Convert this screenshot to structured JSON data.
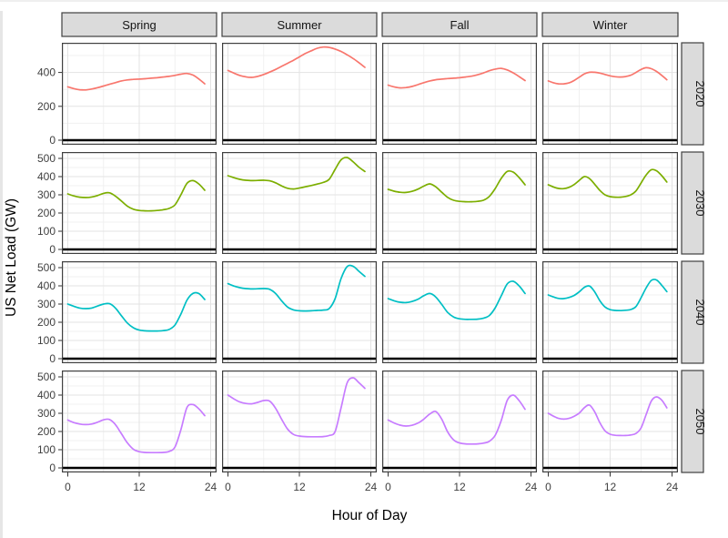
{
  "chart_data": {
    "type": "line",
    "title": "",
    "xlabel": "Hour of Day",
    "ylabel": "US Net Load (GW)",
    "facet_columns": [
      "Spring",
      "Summer",
      "Fall",
      "Winter"
    ],
    "facet_rows": [
      "2020",
      "2030",
      "2040",
      "2050"
    ],
    "x_hours": [
      0,
      1,
      2,
      3,
      4,
      5,
      6,
      7,
      8,
      9,
      10,
      11,
      12,
      13,
      14,
      15,
      16,
      17,
      18,
      19,
      20,
      21,
      22,
      23
    ],
    "x_ticks": [
      0,
      12,
      24
    ],
    "xlim": [
      0,
      24
    ],
    "grid": true,
    "legend": "none",
    "strip_background": "#dbdbdb",
    "strip_text_color": "#141414",
    "panel_border_color": "#3f3f3f",
    "grid_major_color": "#e3e3e3",
    "grid_minor_color": "#f0f0f0",
    "zero_line_color": "#000000",
    "tick_label_color": "#404040",
    "rows": [
      {
        "label": "2020",
        "color": "#F8766D",
        "y_ticks": [
          0,
          200,
          400
        ],
        "y_minor": [
          100,
          300,
          500
        ],
        "ylim": [
          0,
          575
        ],
        "series": {
          "Spring": [
            315,
            305,
            298,
            297,
            302,
            310,
            320,
            330,
            340,
            350,
            356,
            359,
            361,
            363,
            366,
            369,
            373,
            377,
            383,
            390,
            394,
            385,
            362,
            333
          ],
          "Summer": [
            412,
            396,
            382,
            374,
            371,
            377,
            388,
            402,
            418,
            436,
            454,
            472,
            492,
            512,
            528,
            543,
            550,
            548,
            538,
            524,
            505,
            483,
            458,
            430
          ],
          "Fall": [
            325,
            315,
            309,
            311,
            317,
            328,
            340,
            350,
            357,
            361,
            364,
            366,
            369,
            373,
            378,
            386,
            397,
            410,
            420,
            424,
            415,
            398,
            376,
            352
          ],
          "Winter": [
            350,
            339,
            333,
            333,
            338,
            352,
            372,
            392,
            401,
            401,
            396,
            388,
            380,
            375,
            373,
            376,
            384,
            400,
            418,
            428,
            422,
            406,
            383,
            357
          ]
        }
      },
      {
        "label": "2030",
        "color": "#7CAE00",
        "y_ticks": [
          0,
          100,
          200,
          300,
          400,
          500
        ],
        "y_minor": [
          50,
          150,
          250,
          350,
          450
        ],
        "ylim": [
          0,
          535
        ],
        "series": {
          "Spring": [
            305,
            294,
            287,
            285,
            288,
            296,
            308,
            311,
            293,
            266,
            238,
            221,
            214,
            212,
            212,
            214,
            218,
            225,
            245,
            300,
            362,
            378,
            360,
            325
          ],
          "Summer": [
            405,
            394,
            385,
            380,
            378,
            379,
            380,
            377,
            366,
            349,
            336,
            332,
            337,
            344,
            351,
            359,
            368,
            385,
            440,
            492,
            505,
            482,
            452,
            428
          ],
          "Fall": [
            330,
            320,
            314,
            313,
            319,
            331,
            348,
            360,
            344,
            314,
            286,
            270,
            264,
            262,
            262,
            264,
            270,
            291,
            335,
            390,
            428,
            425,
            395,
            355
          ],
          "Winter": [
            355,
            343,
            335,
            334,
            341,
            356,
            379,
            400,
            389,
            358,
            324,
            300,
            290,
            287,
            287,
            291,
            300,
            321,
            365,
            410,
            438,
            432,
            405,
            370
          ]
        }
      },
      {
        "label": "2040",
        "color": "#00BFC4",
        "y_ticks": [
          0,
          100,
          200,
          300,
          400,
          500
        ],
        "y_minor": [
          50,
          150,
          250,
          350,
          450
        ],
        "ylim": [
          0,
          535
        ],
        "series": {
          "Spring": [
            300,
            288,
            278,
            275,
            278,
            289,
            300,
            302,
            278,
            236,
            196,
            170,
            157,
            153,
            152,
            152,
            154,
            160,
            185,
            245,
            320,
            358,
            358,
            325
          ],
          "Summer": [
            412,
            399,
            390,
            385,
            383,
            384,
            385,
            381,
            358,
            318,
            284,
            268,
            263,
            262,
            263,
            265,
            267,
            275,
            330,
            440,
            505,
            508,
            480,
            452
          ],
          "Fall": [
            330,
            318,
            310,
            308,
            314,
            326,
            346,
            358,
            339,
            298,
            254,
            229,
            219,
            216,
            216,
            217,
            222,
            237,
            280,
            345,
            410,
            425,
            400,
            358
          ],
          "Winter": [
            350,
            339,
            331,
            330,
            336,
            347,
            367,
            392,
            399,
            367,
            318,
            284,
            269,
            265,
            264,
            266,
            270,
            286,
            335,
            390,
            430,
            432,
            403,
            368
          ]
        }
      },
      {
        "label": "2050",
        "color": "#C77CFF",
        "y_ticks": [
          0,
          100,
          200,
          300,
          400,
          500
        ],
        "y_minor": [
          50,
          150,
          250,
          350,
          450
        ],
        "ylim": [
          0,
          535
        ],
        "series": {
          "Spring": [
            263,
            249,
            241,
            238,
            241,
            251,
            264,
            266,
            238,
            188,
            138,
            103,
            89,
            85,
            84,
            84,
            85,
            90,
            115,
            210,
            330,
            348,
            325,
            287
          ],
          "Summer": [
            400,
            379,
            362,
            354,
            352,
            360,
            370,
            367,
            328,
            268,
            214,
            184,
            175,
            172,
            171,
            171,
            172,
            178,
            200,
            330,
            465,
            495,
            468,
            437
          ],
          "Fall": [
            263,
            247,
            235,
            230,
            234,
            246,
            268,
            296,
            310,
            268,
            198,
            154,
            137,
            132,
            131,
            132,
            136,
            146,
            180,
            260,
            370,
            400,
            370,
            322
          ],
          "Winter": [
            300,
            284,
            272,
            268,
            272,
            283,
            301,
            331,
            345,
            308,
            248,
            204,
            185,
            179,
            178,
            178,
            181,
            189,
            220,
            295,
            368,
            390,
            372,
            330
          ]
        }
      }
    ]
  }
}
